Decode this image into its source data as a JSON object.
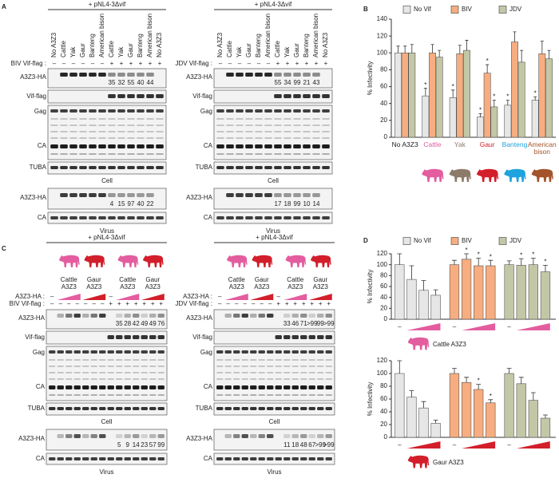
{
  "panel_a": {
    "letter": "A",
    "blots": [
      {
        "header": "+ pNL4-3Δvif",
        "vif_label": "BIV Vif-flag :",
        "vif_color": "#e8743b",
        "lanes": [
          "No A3Z3",
          "Cattle",
          "Yak",
          "Gaur",
          "Banteng",
          "American bison",
          "Cattle",
          "Yak",
          "Gaur",
          "Banteng",
          "American bison",
          "No A3Z3"
        ],
        "lane_colors": [
          "#222222",
          "#e35d9f",
          "#8c7b69",
          "#d21f2b",
          "#1ea3de",
          "#a3542a",
          "#e35d9f",
          "#8c7b69",
          "#d21f2b",
          "#1ea3de",
          "#a3542a",
          "#222222"
        ],
        "vif_signs": [
          "–",
          "–",
          "–",
          "–",
          "–",
          "–",
          "+",
          "+",
          "+",
          "+",
          "+",
          "+"
        ],
        "cell_rows": [
          "A3Z3-HA",
          "Vif-flag",
          "Gag",
          "CA",
          "TUBA"
        ],
        "cell_caption": "Cell",
        "cell_quant": [
          null,
          null,
          null,
          null,
          null,
          null,
          35,
          32,
          55,
          40,
          44,
          null
        ],
        "virus_rows": [
          "A3Z3-HA",
          "CA"
        ],
        "virus_caption": "Virus",
        "virus_quant": [
          null,
          null,
          null,
          null,
          null,
          null,
          4,
          15,
          97,
          40,
          22,
          null
        ]
      },
      {
        "header": "+ pNL4-3Δvif",
        "vif_label": "JDV Vif-flag :",
        "vif_color": "#8a9160",
        "lanes": [
          "No A3Z3",
          "Cattle",
          "Yak",
          "Gaur",
          "Banteng",
          "American bison",
          "Cattle",
          "Yak",
          "Gaur",
          "Banteng",
          "American bison",
          "No A3Z3"
        ],
        "lane_colors": [
          "#222222",
          "#e35d9f",
          "#8c7b69",
          "#d21f2b",
          "#1ea3de",
          "#a3542a",
          "#e35d9f",
          "#8c7b69",
          "#d21f2b",
          "#1ea3de",
          "#a3542a",
          "#222222"
        ],
        "vif_signs": [
          "–",
          "–",
          "–",
          "–",
          "–",
          "–",
          "+",
          "+",
          "+",
          "+",
          "+",
          "+"
        ],
        "cell_rows": [
          "A3Z3-HA",
          "Vif-flag",
          "Gag",
          "CA",
          "TUBA"
        ],
        "cell_caption": "Cell",
        "cell_quant": [
          null,
          null,
          null,
          null,
          null,
          null,
          55,
          34,
          99,
          21,
          43,
          null
        ],
        "virus_rows": [
          "A3Z3-HA",
          "CA"
        ],
        "virus_caption": "Virus",
        "virus_quant": [
          null,
          null,
          null,
          null,
          null,
          null,
          17,
          18,
          99,
          10,
          14,
          null
        ]
      }
    ]
  },
  "panel_c": {
    "letter": "C",
    "blots": [
      {
        "header": "+ pNL4-3Δvif",
        "groups": [
          {
            "label": [
              "Cattle",
              "A3Z3"
            ],
            "color": "#e35d9f"
          },
          {
            "label": [
              "Gaur",
              "A3Z3"
            ],
            "color": "#d21f2b"
          },
          {
            "label": [
              "Cattle",
              "A3Z3"
            ],
            "color": "#e35d9f"
          },
          {
            "label": [
              "Gaur",
              "A3Z3"
            ],
            "color": "#d21f2b"
          }
        ],
        "a3z3_label": "A3Z3-HA :",
        "a3z3_signs": [
          "–",
          null,
          null,
          null,
          null,
          null,
          null,
          "–",
          null,
          null,
          null,
          null,
          null,
          null
        ],
        "vif_label": "BIV Vif-flag :",
        "vif_color": "#e8743b",
        "vif_signs": [
          "–",
          "–",
          "–",
          "–",
          "–",
          "–",
          "–",
          "+",
          "+",
          "+",
          "+",
          "+",
          "+",
          "+"
        ],
        "cell_rows": [
          "A3Z3-HA",
          "Vif-flag",
          "Gag",
          "CA",
          "TUBA"
        ],
        "cell_caption": "Cell",
        "cell_quant": [
          null,
          null,
          null,
          null,
          null,
          null,
          null,
          null,
          35,
          28,
          42,
          49,
          49,
          76
        ],
        "virus_rows": [
          "A3Z3-HA",
          "CA"
        ],
        "virus_caption": "Virus",
        "virus_quant": [
          null,
          null,
          null,
          null,
          null,
          null,
          null,
          null,
          5,
          9,
          14,
          23,
          57,
          99
        ]
      },
      {
        "header": "+ pNL4-3Δvif",
        "groups": [
          {
            "label": [
              "Cattle",
              "A3Z3"
            ],
            "color": "#e35d9f"
          },
          {
            "label": [
              "Gaur",
              "A3Z3"
            ],
            "color": "#d21f2b"
          },
          {
            "label": [
              "Cattle",
              "A3Z3"
            ],
            "color": "#e35d9f"
          },
          {
            "label": [
              "Gaur",
              "A3Z3"
            ],
            "color": "#d21f2b"
          }
        ],
        "a3z3_label": "A3Z3-HA :",
        "a3z3_signs": [
          "–",
          null,
          null,
          null,
          null,
          null,
          null,
          "–",
          null,
          null,
          null,
          null,
          null,
          null
        ],
        "vif_label": "JDV Vif-flag :",
        "vif_color": "#8a9160",
        "vif_signs": [
          "–",
          "–",
          "–",
          "–",
          "–",
          "–",
          "–",
          "+",
          "+",
          "+",
          "+",
          "+",
          "+",
          "+"
        ],
        "cell_rows": [
          "A3Z3-HA",
          "Vif-flag",
          "Gag",
          "CA",
          "TUBA"
        ],
        "cell_caption": "Cell",
        "cell_quant": [
          null,
          null,
          null,
          null,
          null,
          null,
          null,
          null,
          33,
          46,
          71,
          ">99",
          99,
          ">99"
        ],
        "virus_rows": [
          "A3Z3-HA",
          "CA"
        ],
        "virus_caption": "Virus",
        "virus_quant": [
          null,
          null,
          null,
          null,
          null,
          null,
          null,
          null,
          11,
          18,
          48,
          67,
          ">99",
          ">99"
        ]
      }
    ]
  },
  "chart_data": [
    {
      "type": "bar",
      "letter": "B",
      "ylabel": "% Infectivity",
      "categories": [
        "No A3Z3",
        "Cattle",
        "Yak",
        "Gaur",
        "Banteng",
        "American bison"
      ],
      "category_colors": [
        "#222222",
        "#e35d9f",
        "#8c7b69",
        "#d21f2b",
        "#1ea3de",
        "#a3542a"
      ],
      "ylim": [
        0,
        140
      ],
      "yticks": [
        0,
        20,
        40,
        60,
        80,
        100,
        120,
        140
      ],
      "series": [
        {
          "name": "No Vif",
          "color": "#e6e6e6",
          "marker_color": "#111111",
          "values": [
            100,
            49,
            47,
            24,
            38,
            44
          ],
          "errors": [
            8,
            9,
            9,
            4,
            6,
            4
          ],
          "markers": [
            null,
            "*",
            "*",
            "*",
            "*",
            "*"
          ]
        },
        {
          "name": "BIV",
          "color": "#f7ad80",
          "marker_color": "#f07030",
          "values": [
            100,
            100,
            99,
            76,
            113,
            99
          ],
          "errors": [
            8,
            10,
            10,
            10,
            12,
            15
          ],
          "markers": [
            null,
            null,
            null,
            "*",
            null,
            null
          ]
        },
        {
          "name": "JDV",
          "color": "#c4c7a6",
          "marker_color": "#8a9160",
          "values": [
            100,
            95,
            103,
            36,
            89,
            93
          ],
          "errors": [
            10,
            8,
            12,
            8,
            14,
            10
          ],
          "markers": [
            null,
            null,
            null,
            "*",
            null,
            null
          ]
        }
      ]
    },
    {
      "type": "bar",
      "letter": "D",
      "ylabel": "% Infectivity",
      "caption": "Cattle A3Z3",
      "caption_color": "#e35d9f",
      "dose_label": "–",
      "ylim": [
        0,
        120
      ],
      "yticks": [
        0,
        20,
        40,
        60,
        80,
        100,
        120
      ],
      "series": [
        {
          "name": "No Vif",
          "color": "#e6e6e6",
          "marker_color": "#111111",
          "values": [
            100,
            73,
            53,
            44
          ],
          "errors": [
            20,
            25,
            18,
            10
          ]
        },
        {
          "name": "BIV",
          "color": "#f7ad80",
          "marker_color": "#f07030",
          "values": [
            100,
            110,
            98,
            98
          ],
          "errors": [
            8,
            10,
            14,
            10
          ],
          "markers": [
            null,
            "*",
            "*",
            "*"
          ]
        },
        {
          "name": "JDV",
          "color": "#c4c7a6",
          "marker_color": "#8a9160",
          "values": [
            100,
            99,
            100,
            87
          ],
          "errors": [
            7,
            12,
            12,
            12
          ],
          "markers": [
            null,
            "*",
            "*",
            "*"
          ]
        }
      ]
    },
    {
      "type": "bar",
      "ylabel": "% Infectivity",
      "caption": "Gaur A3Z3",
      "caption_color": "#d21f2b",
      "dose_label": "–",
      "ylim": [
        0,
        120
      ],
      "yticks": [
        0,
        20,
        40,
        60,
        80,
        100,
        120
      ],
      "series": [
        {
          "color": "#e6e6e6",
          "marker_color": "#111111",
          "values": [
            100,
            63,
            46,
            22
          ],
          "errors": [
            20,
            10,
            10,
            5
          ]
        },
        {
          "color": "#f7ad80",
          "marker_color": "#f07030",
          "values": [
            100,
            86,
            75,
            54
          ],
          "errors": [
            8,
            8,
            8,
            5
          ],
          "markers": [
            null,
            null,
            "*",
            "*"
          ]
        },
        {
          "color": "#c4c7a6",
          "marker_color": "#8a9160",
          "values": [
            100,
            84,
            58,
            30
          ],
          "errors": [
            8,
            10,
            12,
            5
          ]
        }
      ]
    }
  ]
}
